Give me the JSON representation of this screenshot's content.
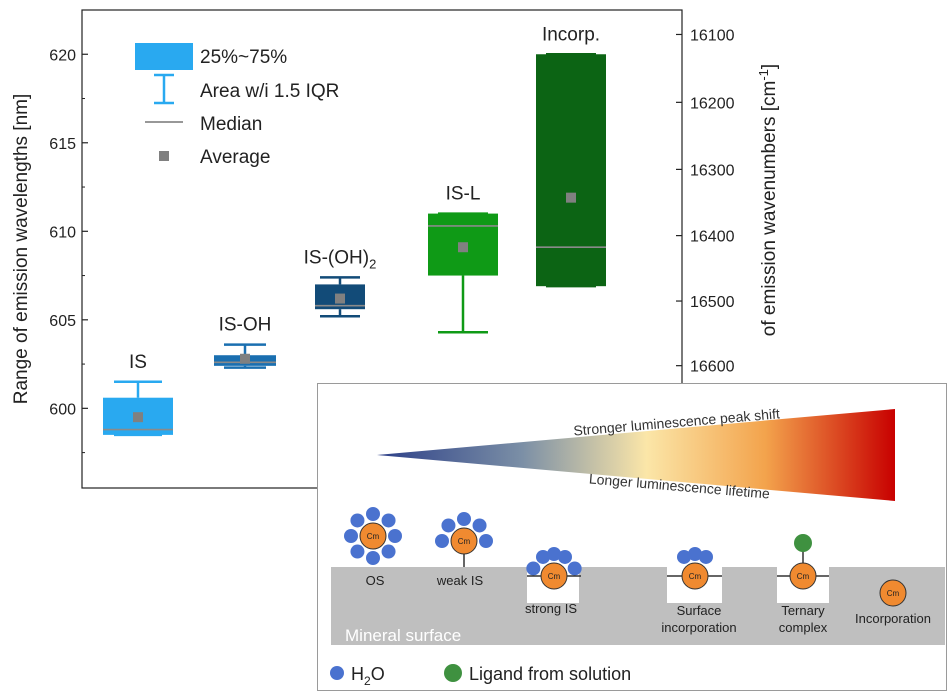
{
  "chart_data": {
    "type": "box",
    "ylabel_left": "Range of emission wavelengths [nm]",
    "ylabel_right": "of emission wavenumbers [cm",
    "ylabel_right_sup": "-1",
    "ylabel_right_end": "]",
    "ylim": [
      595.5,
      622.5
    ],
    "y_ticks_left": [
      600,
      605,
      610,
      615,
      620
    ],
    "y_ticks_right": [
      16100,
      16200,
      16300,
      16400,
      16500,
      16600
    ],
    "grid": false,
    "legend": {
      "placement": "top-left",
      "box_label": "25%~75%",
      "whisker_label": "Area w/i 1.5 IQR",
      "median_label": "Median",
      "average_label": "Average"
    },
    "series": [
      {
        "category": "IS",
        "label_parts": [
          "IS"
        ],
        "q1": 598.5,
        "q3": 600.6,
        "whisker_low": 598.5,
        "whisker_high": 601.5,
        "median": 598.8,
        "mean": 599.5,
        "color": "#29a9f0"
      },
      {
        "category": "IS-OH",
        "label_parts": [
          "IS-OH"
        ],
        "q1": 602.4,
        "q3": 603.0,
        "whisker_low": 602.3,
        "whisker_high": 603.6,
        "median": 602.6,
        "mean": 602.8,
        "color": "#1a6fb0"
      },
      {
        "category": "IS-(OH)2",
        "label_parts": [
          "IS-(OH)",
          "2"
        ],
        "q1": 605.6,
        "q3": 607.0,
        "whisker_low": 605.2,
        "whisker_high": 607.4,
        "median": 605.8,
        "mean": 606.2,
        "color": "#124b78"
      },
      {
        "category": "IS-L",
        "label_parts": [
          "IS-L"
        ],
        "q1": 607.5,
        "q3": 611.0,
        "whisker_low": 604.3,
        "whisker_high": 611.0,
        "median": 610.3,
        "mean": 609.1,
        "color": "#0f9a16"
      },
      {
        "category": "Incorp.",
        "label_parts": [
          "Incorp."
        ],
        "q1": 606.9,
        "q3": 620.0,
        "whisker_low": 606.9,
        "whisker_high": 620.0,
        "median": 609.1,
        "mean": 611.9,
        "color": "#0c6414"
      }
    ]
  },
  "inset": {
    "top_label": "Stronger luminescence peak shift",
    "bottom_label": "Longer luminescence lifetime",
    "surface_label": "Mineral surface",
    "center_label": "Cm",
    "species": [
      {
        "label": "OS"
      },
      {
        "label": "weak IS"
      },
      {
        "label": "strong IS"
      },
      {
        "label_lines": [
          "Surface",
          "incorporation"
        ]
      },
      {
        "label_lines": [
          "Ternary",
          "complex"
        ]
      },
      {
        "label": "Incorporation"
      }
    ],
    "legend": {
      "water_label": "H",
      "water_sub": "2",
      "water_label_end": "O",
      "ligand_label": "Ligand from solution"
    },
    "colors": {
      "cm": "#f08a30",
      "water": "#4a72cf",
      "ligand": "#3f9140",
      "surface": "#bfbfbf"
    }
  }
}
